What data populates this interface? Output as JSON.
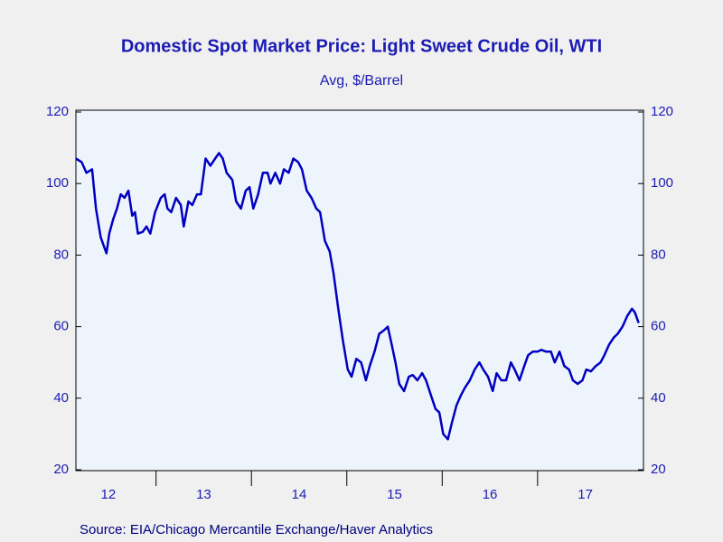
{
  "chart_data": {
    "type": "line",
    "title": "Domestic Spot Market Price: Light Sweet Crude Oil, WTI",
    "subtitle": "Avg, $/Barrel",
    "source": "Source:  EIA/Chicago Mercantile Exchange/Haver Analytics",
    "xlim": [
      12.16,
      18.11
    ],
    "xticks": [
      13,
      14,
      15,
      16,
      17
    ],
    "xtick_labels": [
      {
        "value": 12.5,
        "label": "12"
      },
      {
        "value": 13.5,
        "label": "13"
      },
      {
        "value": 14.5,
        "label": "14"
      },
      {
        "value": 15.5,
        "label": "15"
      },
      {
        "value": 16.5,
        "label": "16"
      },
      {
        "value": 17.5,
        "label": "17"
      }
    ],
    "ylim": [
      20,
      120
    ],
    "yticks": [
      20,
      40,
      60,
      80,
      100,
      120
    ],
    "y2lim": [
      20,
      120
    ],
    "y2ticks": [
      20,
      40,
      60,
      80,
      100,
      120
    ],
    "series": [
      {
        "color": "#0000c0",
        "x": [
          12.16,
          12.22,
          12.27,
          12.33,
          12.37,
          12.42,
          12.48,
          12.51,
          12.55,
          12.59,
          12.63,
          12.67,
          12.71,
          12.75,
          12.78,
          12.81,
          12.86,
          12.9,
          12.94,
          12.99,
          13.05,
          13.09,
          13.12,
          13.16,
          13.21,
          13.26,
          13.29,
          13.34,
          13.38,
          13.43,
          13.47,
          13.52,
          13.57,
          13.62,
          13.66,
          13.7,
          13.74,
          13.8,
          13.84,
          13.89,
          13.94,
          13.98,
          14.02,
          14.07,
          14.12,
          14.17,
          14.2,
          14.25,
          14.3,
          14.34,
          14.39,
          14.44,
          14.49,
          14.53,
          14.58,
          14.63,
          14.68,
          14.72,
          14.77,
          14.82,
          14.86,
          14.91,
          14.96,
          15.01,
          15.05,
          15.1,
          15.15,
          15.2,
          15.24,
          15.29,
          15.34,
          15.39,
          15.43,
          15.47,
          15.51,
          15.55,
          15.6,
          15.65,
          15.69,
          15.74,
          15.79,
          15.83,
          15.88,
          15.93,
          15.97,
          16.01,
          16.06,
          16.1,
          16.15,
          16.2,
          16.24,
          16.29,
          16.34,
          16.39,
          16.43,
          16.48,
          16.53,
          16.57,
          16.62,
          16.67,
          16.72,
          16.76,
          16.81,
          16.86,
          16.9,
          16.95,
          17.0,
          17.04,
          17.09,
          17.14,
          17.18,
          17.23,
          17.28,
          17.33,
          17.37,
          17.42,
          17.47,
          17.51,
          17.56,
          17.61,
          17.66,
          17.7,
          17.75,
          17.8,
          17.84,
          17.89,
          17.94,
          17.99,
          18.02,
          18.06
        ],
        "values": [
          107,
          106,
          103,
          104,
          93,
          85,
          80.5,
          86,
          90,
          93,
          97,
          96,
          98,
          91,
          92,
          86,
          86.5,
          88,
          86,
          92,
          96,
          97,
          93,
          92,
          96,
          94,
          88,
          95,
          94,
          97,
          97,
          107,
          105,
          107,
          108.5,
          107,
          103,
          101,
          95,
          93,
          98,
          99,
          93,
          97,
          103,
          103,
          100,
          103,
          100,
          104,
          103,
          107,
          106,
          104,
          98,
          96,
          93,
          92,
          84,
          81,
          75,
          65,
          56,
          48,
          46,
          51,
          50,
          45,
          49,
          53,
          58,
          59,
          60,
          55,
          50,
          44,
          42,
          46,
          46.5,
          45,
          47,
          45,
          41,
          37,
          36,
          30,
          28.5,
          33,
          38,
          41,
          43,
          45,
          48,
          50,
          48,
          46,
          42,
          47,
          45,
          45,
          50,
          48,
          45,
          49,
          52,
          53,
          53,
          53.5,
          53,
          53,
          50,
          53,
          49,
          48,
          45,
          44,
          45,
          48,
          47.5,
          49,
          50,
          52,
          55,
          57,
          58,
          60,
          63,
          65,
          64,
          61
        ]
      }
    ]
  }
}
